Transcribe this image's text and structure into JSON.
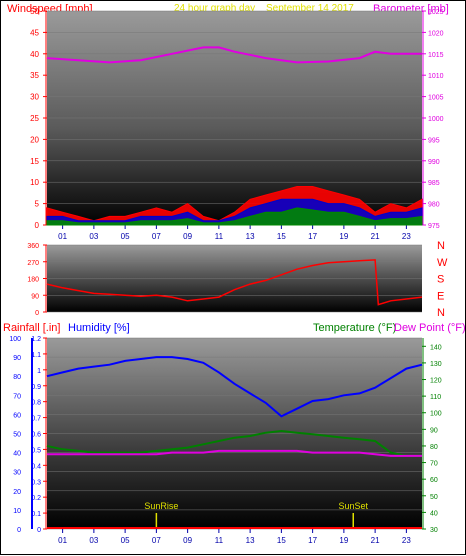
{
  "header": {
    "left_label": "Windspeed [mph]",
    "center_label": "24 hour graph day",
    "date_label": "September 14 2017",
    "right_label": "Barometer [mb]"
  },
  "lower_header": {
    "rain_label": "Rainfall [.in]",
    "humidity_label": "Humidity [%]",
    "temp_label": "Temperature (°F)",
    "dew_label": "Dew Point (°F)"
  },
  "colors": {
    "windspeed": "#ff0000",
    "gust": "#0000cc",
    "avg": "#008800",
    "barometer": "#e000e0",
    "direction": "#ff0000",
    "humidity": "#0000ff",
    "temperature": "#008000",
    "dewpoint": "#e000e0",
    "rain": "#ff0000",
    "sun": "#e0e000"
  },
  "chart_data": [
    {
      "type": "area",
      "title": "",
      "x_ticks": [
        "01",
        "03",
        "05",
        "07",
        "09",
        "11",
        "13",
        "15",
        "17",
        "19",
        "21",
        "23"
      ],
      "ylabel": "Windspeed [mph]",
      "y_ticks": [
        0,
        5,
        10,
        15,
        20,
        25,
        30,
        35,
        40,
        45,
        50
      ],
      "ylim": [
        0,
        50
      ],
      "y2label": "Barometer [mb]",
      "y2_ticks": [
        975,
        980,
        985,
        990,
        995,
        1000,
        1005,
        1010,
        1015,
        1020,
        1025
      ],
      "y2lim": [
        975,
        1025
      ],
      "xlim": [
        0,
        24
      ],
      "series": [
        {
          "name": "windspeed",
          "x": [
            0,
            1,
            2,
            3,
            4,
            5,
            6,
            7,
            8,
            9,
            10,
            11,
            12,
            13,
            14,
            15,
            16,
            17,
            18,
            19,
            20,
            21,
            22,
            23,
            24
          ],
          "values": [
            4,
            3,
            2,
            1,
            2,
            2,
            3,
            4,
            3,
            5,
            2,
            1,
            3,
            6,
            7,
            8,
            9,
            9,
            8,
            7,
            6,
            3,
            5,
            4,
            6
          ]
        },
        {
          "name": "gust",
          "x": [
            0,
            1,
            2,
            3,
            4,
            5,
            6,
            7,
            8,
            9,
            10,
            11,
            12,
            13,
            14,
            15,
            16,
            17,
            18,
            19,
            20,
            21,
            22,
            23,
            24
          ],
          "values": [
            2,
            2,
            1,
            1,
            1,
            1,
            2,
            2,
            2,
            3,
            1,
            1,
            2,
            4,
            5,
            6,
            6,
            6,
            5,
            5,
            4,
            2,
            3,
            3,
            4
          ]
        },
        {
          "name": "avg",
          "x": [
            0,
            1,
            2,
            3,
            4,
            5,
            6,
            7,
            8,
            9,
            10,
            11,
            12,
            13,
            14,
            15,
            16,
            17,
            18,
            19,
            20,
            21,
            22,
            23,
            24
          ],
          "values": [
            1,
            1,
            0.5,
            0.5,
            0.5,
            0.5,
            1,
            1,
            1,
            1.5,
            0.5,
            0.5,
            1,
            2,
            3,
            3,
            4,
            3.5,
            3,
            3,
            2,
            1,
            1.5,
            1.5,
            2
          ]
        },
        {
          "name": "barometer",
          "x": [
            0,
            2,
            4,
            6,
            8,
            10,
            11,
            12,
            14,
            16,
            18,
            20,
            21,
            22,
            24
          ],
          "values": [
            1014,
            1013.5,
            1013,
            1013.5,
            1015,
            1016.5,
            1016.5,
            1015.5,
            1014,
            1013,
            1013.2,
            1014,
            1015.5,
            1015,
            1015
          ]
        }
      ]
    },
    {
      "type": "line",
      "title": "",
      "xlim": [
        0,
        24
      ],
      "y_ticks": [
        0,
        90,
        180,
        270,
        360
      ],
      "ylim": [
        0,
        360
      ],
      "compass_labels": [
        "N",
        "W",
        "S",
        "E",
        "N"
      ],
      "series": [
        {
          "name": "direction",
          "x": [
            0,
            1,
            2,
            3,
            4,
            5,
            6,
            7,
            8,
            9,
            10,
            11,
            12,
            13,
            14,
            15,
            16,
            17,
            18,
            19,
            20,
            21,
            21.2,
            22,
            23,
            24
          ],
          "values": [
            150,
            130,
            115,
            100,
            95,
            90,
            85,
            90,
            80,
            60,
            70,
            80,
            120,
            150,
            170,
            200,
            230,
            250,
            265,
            270,
            275,
            280,
            40,
            60,
            70,
            80
          ]
        }
      ]
    },
    {
      "type": "line",
      "title": "",
      "x_ticks": [
        "01",
        "03",
        "05",
        "07",
        "09",
        "11",
        "13",
        "15",
        "17",
        "19",
        "21",
        "23"
      ],
      "xlim": [
        0,
        24
      ],
      "ylabel": "Rainfall [.in]",
      "y_ticks_rain": [
        0,
        0.1,
        0.2,
        0.3,
        0.4,
        0.5,
        0.6,
        0.7,
        0.8,
        0.9,
        1,
        1.1,
        1.2
      ],
      "ylim_rain": [
        0,
        1.2
      ],
      "y_ticks_humidity": [
        0,
        10,
        20,
        30,
        40,
        50,
        60,
        70,
        80,
        90,
        100
      ],
      "ylim_humidity": [
        0,
        100
      ],
      "y2label": "Temperature (°F)",
      "y2_ticks": [
        30,
        40,
        50,
        60,
        70,
        80,
        90,
        100,
        110,
        120,
        130,
        140
      ],
      "y2lim": [
        30,
        145
      ],
      "annotations": [
        {
          "label": "SunRise",
          "x": 7.0
        },
        {
          "label": "SunSet",
          "x": 19.6
        }
      ],
      "series": [
        {
          "name": "humidity",
          "x": [
            0,
            1,
            2,
            3,
            4,
            5,
            6,
            7,
            8,
            9,
            10,
            11,
            12,
            13,
            14,
            15,
            16,
            17,
            18,
            19,
            20,
            21,
            22,
            23,
            24
          ],
          "values": [
            80,
            82,
            84,
            85,
            86,
            88,
            89,
            90,
            90,
            89,
            87,
            82,
            76,
            71,
            66,
            59,
            63,
            67,
            68,
            70,
            71,
            74,
            79,
            84,
            86
          ]
        },
        {
          "name": "temperature",
          "x": [
            0,
            1,
            2,
            3,
            4,
            5,
            6,
            7,
            8,
            9,
            10,
            11,
            12,
            13,
            14,
            15,
            16,
            17,
            18,
            19,
            20,
            21,
            22,
            23,
            24
          ],
          "values": [
            80,
            78,
            77,
            76,
            76,
            76,
            76,
            77,
            78,
            79,
            81,
            83,
            85,
            86,
            88,
            89,
            88,
            87,
            86,
            85,
            84,
            83,
            76,
            74,
            74
          ]
        },
        {
          "name": "dewpoint",
          "x": [
            0,
            1,
            2,
            3,
            4,
            5,
            6,
            7,
            8,
            9,
            10,
            11,
            12,
            13,
            14,
            15,
            16,
            17,
            18,
            19,
            20,
            21,
            22,
            23,
            24
          ],
          "values": [
            75,
            75,
            75,
            75,
            75,
            75,
            75,
            75,
            76,
            76,
            76,
            77,
            77,
            77,
            77,
            77,
            77,
            76,
            76,
            76,
            76,
            75,
            74,
            74,
            74
          ]
        },
        {
          "name": "rainfall",
          "x": [
            0,
            24
          ],
          "values": [
            0,
            0
          ]
        }
      ]
    }
  ]
}
